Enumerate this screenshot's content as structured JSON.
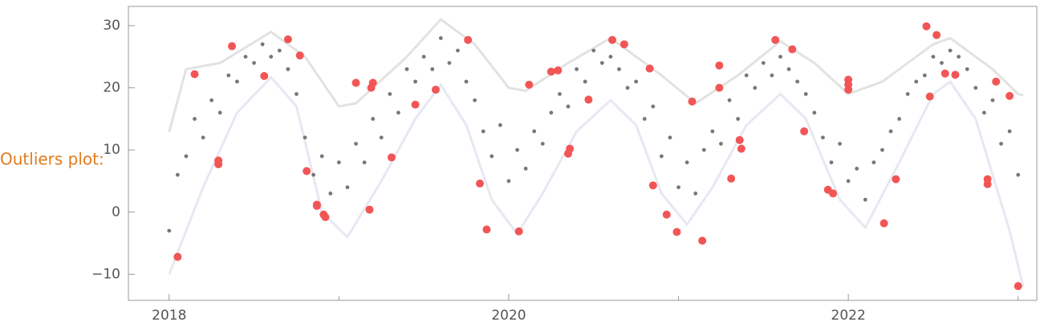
{
  "chart_data": {
    "type": "scatter",
    "label": "Outliers plot:",
    "xlim": [
      2017.76,
      2023.11
    ],
    "ylim": [
      -14.2,
      33.1
    ],
    "xticks": [
      2018,
      2020,
      2022
    ],
    "xminor": [
      2019,
      2021,
      2023
    ],
    "yticks": [
      30,
      20,
      10,
      0,
      {
        "value": -10,
        "label": "−10"
      }
    ],
    "points": {
      "color": "#777777",
      "x": [
        2018.0,
        2018.05,
        2018.1,
        2018.15,
        2018.2,
        2018.25,
        2018.3,
        2018.35,
        2018.4,
        2018.45,
        2018.5,
        2018.55,
        2018.6,
        2018.65,
        2018.7,
        2018.75,
        2018.8,
        2018.85,
        2018.9,
        2018.95,
        2019.0,
        2019.05,
        2019.1,
        2019.15,
        2019.2,
        2019.25,
        2019.3,
        2019.35,
        2019.4,
        2019.45,
        2019.5,
        2019.55,
        2019.6,
        2019.65,
        2019.7,
        2019.75,
        2019.8,
        2019.85,
        2019.9,
        2019.95,
        2020.0,
        2020.05,
        2020.1,
        2020.15,
        2020.2,
        2020.25,
        2020.3,
        2020.35,
        2020.4,
        2020.45,
        2020.5,
        2020.55,
        2020.6,
        2020.65,
        2020.7,
        2020.75,
        2020.8,
        2020.85,
        2020.9,
        2020.95,
        2021.0,
        2021.05,
        2021.1,
        2021.15,
        2021.2,
        2021.25,
        2021.3,
        2021.35,
        2021.4,
        2021.45,
        2021.5,
        2021.55,
        2021.6,
        2021.65,
        2021.7,
        2021.75,
        2021.8,
        2021.85,
        2021.9,
        2021.95,
        2022.0,
        2022.05,
        2022.1,
        2022.15,
        2022.2,
        2022.25,
        2022.3,
        2022.35,
        2022.4,
        2022.45,
        2022.5,
        2022.55,
        2022.6,
        2022.65,
        2022.7,
        2022.75,
        2022.8,
        2022.85,
        2022.9,
        2022.95,
        2023.0
      ],
      "y": [
        -3,
        6,
        9,
        15,
        12,
        18,
        16,
        22,
        21,
        25,
        24,
        27,
        25,
        26,
        23,
        19,
        12,
        6,
        9,
        3,
        8,
        4,
        11,
        8,
        15,
        12,
        19,
        16,
        23,
        21,
        25,
        23,
        28,
        24,
        26,
        21,
        18,
        13,
        9,
        14,
        5,
        10,
        7,
        13,
        11,
        16,
        19,
        17,
        23,
        21,
        26,
        24,
        25,
        23,
        20,
        21,
        15,
        17,
        9,
        12,
        4,
        8,
        3,
        10,
        13,
        11,
        18,
        15,
        22,
        20,
        24,
        22,
        25,
        23,
        21,
        19,
        16,
        12,
        8,
        11,
        5,
        7,
        2,
        8,
        10,
        13,
        15,
        19,
        21,
        22,
        25,
        24,
        26,
        25,
        23,
        20,
        16,
        18,
        11,
        13,
        6
      ]
    },
    "outliers": {
      "color": "#f25555",
      "x": [
        2018.05,
        2018.15,
        2018.29,
        2018.29,
        2018.37,
        2018.56,
        2018.7,
        2018.77,
        2018.81,
        2018.87,
        2018.87,
        2018.91,
        2018.92,
        2019.1,
        2019.18,
        2019.19,
        2019.2,
        2019.31,
        2019.45,
        2019.57,
        2019.76,
        2019.83,
        2019.87,
        2020.06,
        2020.12,
        2020.25,
        2020.29,
        2020.35,
        2020.36,
        2020.47,
        2020.61,
        2020.68,
        2020.83,
        2020.85,
        2020.93,
        2020.99,
        2021.08,
        2021.14,
        2021.24,
        2021.24,
        2021.31,
        2021.36,
        2021.37,
        2021.57,
        2021.67,
        2021.74,
        2021.88,
        2021.91,
        2022.0,
        2022.0,
        2022.0,
        2022.21,
        2022.28,
        2022.46,
        2022.48,
        2022.52,
        2022.57,
        2022.63,
        2022.87,
        2022.95,
        2022.82,
        2022.82,
        2023.0
      ],
      "y": [
        -7.2,
        22.2,
        8.3,
        7.7,
        26.7,
        21.9,
        27.8,
        25.2,
        6.6,
        1.2,
        1.0,
        -0.4,
        -0.8,
        20.8,
        0.4,
        20.0,
        20.8,
        8.8,
        17.3,
        19.7,
        27.7,
        4.6,
        -2.8,
        -3.1,
        20.5,
        22.6,
        22.8,
        9.4,
        10.2,
        18.1,
        27.7,
        27.0,
        23.1,
        4.3,
        -0.4,
        -3.2,
        17.8,
        -4.6,
        20.0,
        23.6,
        5.4,
        11.6,
        10.2,
        27.7,
        26.2,
        13.0,
        3.6,
        3.0,
        21.3,
        20.5,
        19.7,
        -1.8,
        5.3,
        29.9,
        18.6,
        28.5,
        22.3,
        22.1,
        21.0,
        18.7,
        5.3,
        4.5,
        -11.9
      ]
    },
    "upper_band": {
      "color": "#e2e2e2",
      "x": [
        2018.0,
        2018.1,
        2018.3,
        2018.6,
        2018.8,
        2019.0,
        2019.1,
        2019.4,
        2019.6,
        2019.8,
        2020.0,
        2020.1,
        2020.35,
        2020.6,
        2020.9,
        2021.1,
        2021.35,
        2021.6,
        2021.8,
        2022.0,
        2022.2,
        2022.5,
        2022.6,
        2022.85,
        2023.0,
        2023.03
      ],
      "y": [
        12.9,
        23,
        24,
        29,
        25,
        17,
        17.5,
        25,
        31,
        27,
        20,
        19.5,
        24,
        28,
        22,
        17.5,
        22,
        27.5,
        24,
        19,
        21,
        27,
        28,
        23,
        19,
        18.8
      ]
    },
    "lower_band": {
      "color": "#e6e8f2",
      "x": [
        2018.0,
        2018.2,
        2018.4,
        2018.6,
        2018.75,
        2018.9,
        2019.05,
        2019.25,
        2019.45,
        2019.6,
        2019.75,
        2019.9,
        2020.05,
        2020.2,
        2020.4,
        2020.6,
        2020.75,
        2020.9,
        2021.05,
        2021.2,
        2021.4,
        2021.6,
        2021.75,
        2021.95,
        2022.1,
        2022.3,
        2022.5,
        2022.6,
        2022.75,
        2022.95,
        2023.03
      ],
      "y": [
        -10,
        4,
        16,
        21.7,
        17,
        0,
        -4,
        5,
        15,
        20.5,
        14,
        2,
        -3.5,
        3,
        13,
        18,
        14,
        3,
        -2,
        4,
        14,
        19,
        15,
        2,
        -2.5,
        8,
        19,
        21,
        15,
        -3,
        -12
      ]
    }
  }
}
